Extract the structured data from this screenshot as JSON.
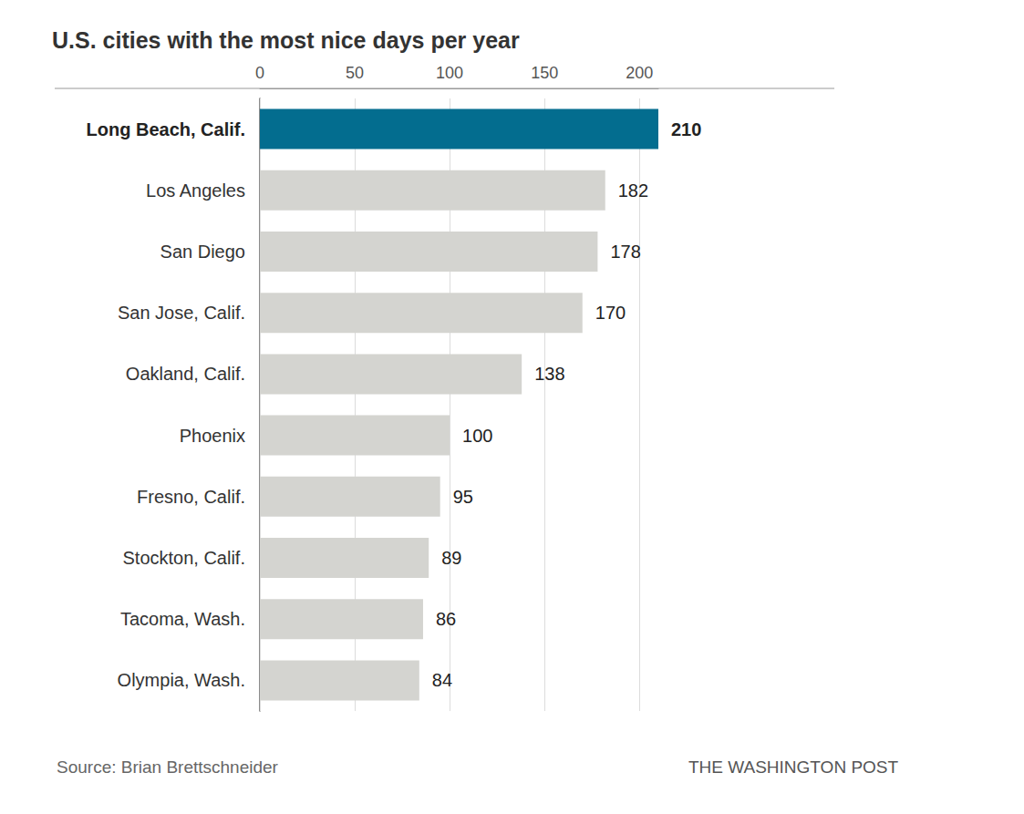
{
  "chart_data": {
    "type": "bar",
    "title": "U.S. cities with the most nice days per year",
    "orientation": "horizontal",
    "categories": [
      "Long Beach, Calif.",
      "Los Angeles",
      "San Diego",
      "San Jose, Calif.",
      "Oakland, Calif.",
      "Phoenix",
      "Fresno, Calif.",
      "Stockton, Calif.",
      "Tacoma, Wash.",
      "Olympia, Wash."
    ],
    "values": [
      210,
      182,
      178,
      170,
      138,
      100,
      95,
      89,
      86,
      84
    ],
    "colors": [
      "#036d8f",
      "#d4d4d0",
      "#d4d4d0",
      "#d4d4d0",
      "#d4d4d0",
      "#d4d4d0",
      "#d4d4d0",
      "#d4d4d0",
      "#d4d4d0",
      "#d4d4d0"
    ],
    "xlim": [
      0,
      210
    ],
    "xticks": [
      0,
      50,
      100,
      150,
      200
    ],
    "grid": true,
    "data_labels": true,
    "annotations": [
      "Source: Brian Brettschneider",
      "THE WASHINGTON POST"
    ]
  }
}
